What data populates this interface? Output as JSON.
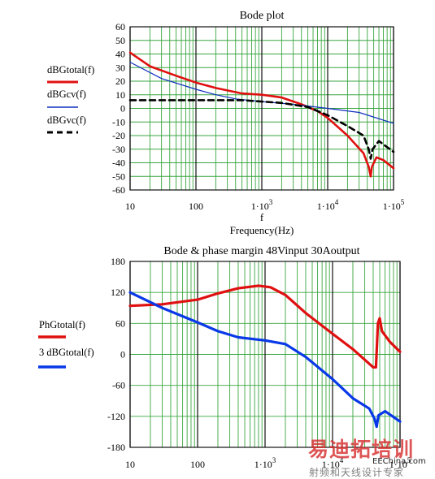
{
  "page": {
    "background": "#ffffff"
  },
  "chart_data": [
    {
      "type": "line",
      "title": "Bode plot",
      "xlabel_var": "f",
      "xlabel": "Frequency(Hz)",
      "xscale": "log",
      "xlim": [
        10,
        100000
      ],
      "ylim": [
        -60,
        60
      ],
      "x_tick_labels": [
        "10",
        "100",
        "1·10",
        "1·10",
        "1·10"
      ],
      "x_tick_exponents": [
        "",
        "",
        "3",
        "4",
        "5"
      ],
      "y_tick_labels": [
        "60",
        "50",
        "40",
        "30",
        "20",
        "10",
        "0",
        "-10",
        "-20",
        "-30",
        "-40",
        "-50",
        "-60"
      ],
      "y_ticks": [
        60,
        50,
        40,
        30,
        20,
        10,
        0,
        -10,
        -20,
        -30,
        -40,
        -50,
        -60
      ],
      "grid": true,
      "legend_position": "left",
      "series": [
        {
          "name": "dBGtotal(f)",
          "color": "#e01010",
          "style": "solid",
          "points": [
            [
              10,
              41
            ],
            [
              20,
              31
            ],
            [
              50,
              24
            ],
            [
              100,
              19
            ],
            [
              200,
              15
            ],
            [
              500,
              11
            ],
            [
              1000,
              10
            ],
            [
              2000,
              8
            ],
            [
              4000,
              3
            ],
            [
              7000,
              -2
            ],
            [
              10000,
              -7
            ],
            [
              20000,
              -20
            ],
            [
              35000,
              -33
            ],
            [
              42000,
              -43
            ],
            [
              45000,
              -50
            ],
            [
              47000,
              -43
            ],
            [
              55000,
              -36
            ],
            [
              70000,
              -38
            ],
            [
              100000,
              -44
            ]
          ]
        },
        {
          "name": "dBGcv(f)",
          "color": "#1030c0",
          "style": "solid",
          "points": [
            [
              10,
              34
            ],
            [
              30,
              22
            ],
            [
              100,
              14
            ],
            [
              200,
              10
            ],
            [
              400,
              7
            ],
            [
              1000,
              5
            ],
            [
              3000,
              3
            ],
            [
              10000,
              0
            ],
            [
              30000,
              -3
            ],
            [
              100000,
              -11
            ]
          ]
        },
        {
          "name": "dBGvc(f)",
          "color": "#000000",
          "style": "dashed",
          "points": [
            [
              10,
              6
            ],
            [
              100,
              6
            ],
            [
              500,
              6
            ],
            [
              1000,
              5
            ],
            [
              2000,
              4
            ],
            [
              5000,
              1
            ],
            [
              10000,
              -5
            ],
            [
              20000,
              -13
            ],
            [
              35000,
              -20
            ],
            [
              42000,
              -30
            ],
            [
              45000,
              -37
            ],
            [
              48000,
              -30
            ],
            [
              60000,
              -24
            ],
            [
              100000,
              -32
            ]
          ]
        }
      ]
    },
    {
      "type": "line",
      "title": "Bode & phase margin 48Vinput 30Aoutput",
      "xscale": "log",
      "xlim": [
        10,
        100000
      ],
      "ylim": [
        -180,
        180
      ],
      "x_tick_labels": [
        "10",
        "100",
        "1·10",
        "1·10",
        "1·10"
      ],
      "x_tick_exponents": [
        "",
        "",
        "3",
        "4",
        "5"
      ],
      "y_tick_labels": [
        "180",
        "120",
        "60",
        "0",
        "-60",
        "-120",
        "-180"
      ],
      "y_ticks": [
        180,
        120,
        60,
        0,
        -60,
        -120,
        -180
      ],
      "grid": true,
      "legend_position": "left",
      "series": [
        {
          "name": "PhGtotal(f)",
          "color": "#e01010",
          "style": "solid",
          "points": [
            [
              10,
              94
            ],
            [
              30,
              97
            ],
            [
              100,
              106
            ],
            [
              200,
              118
            ],
            [
              400,
              128
            ],
            [
              800,
              133
            ],
            [
              1200,
              130
            ],
            [
              2000,
              115
            ],
            [
              4000,
              80
            ],
            [
              10000,
              40
            ],
            [
              20000,
              10
            ],
            [
              40000,
              -25
            ],
            [
              44000,
              -25
            ],
            [
              47000,
              60
            ],
            [
              50000,
              70
            ],
            [
              54000,
              45
            ],
            [
              70000,
              25
            ],
            [
              100000,
              5
            ]
          ]
        },
        {
          "name": "3 dBGtotal(f)",
          "color": "#0838e8",
          "style": "solid",
          "points": [
            [
              10,
              120
            ],
            [
              30,
              90
            ],
            [
              100,
              62
            ],
            [
              200,
              45
            ],
            [
              400,
              33
            ],
            [
              1000,
              27
            ],
            [
              2000,
              20
            ],
            [
              4000,
              -5
            ],
            [
              10000,
              -48
            ],
            [
              20000,
              -85
            ],
            [
              35000,
              -105
            ],
            [
              42000,
              -125
            ],
            [
              45000,
              -140
            ],
            [
              48000,
              -118
            ],
            [
              60000,
              -110
            ],
            [
              100000,
              -130
            ]
          ]
        }
      ]
    }
  ],
  "watermark": {
    "brand": "易迪拓培训",
    "sub": "射频和天线设计专家",
    "site": "EEChina.com"
  }
}
